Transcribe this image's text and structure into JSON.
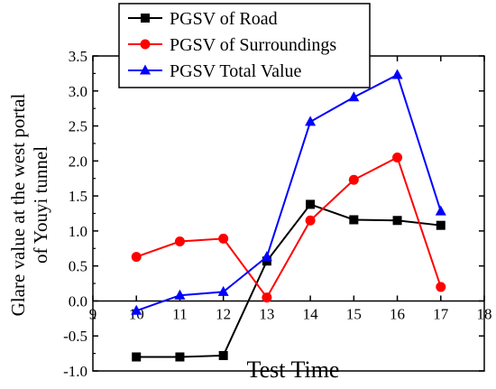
{
  "chart_data": {
    "type": "line",
    "x": [
      10,
      11,
      12,
      13,
      14,
      15,
      16,
      17
    ],
    "xlim": [
      9,
      18
    ],
    "ylim": [
      -1.0,
      3.5
    ],
    "xticks": [
      "9",
      "10",
      "11",
      "12",
      "13",
      "14",
      "15",
      "16",
      "17",
      "18"
    ],
    "yticks": [
      "-1.0",
      "-0.5",
      "0.0",
      "0.5",
      "1.0",
      "1.5",
      "2.0",
      "2.5",
      "3.0",
      "3.5"
    ],
    "xlabel": "Test Time",
    "ylabel_line1": "Glare value at the west portal",
    "ylabel_line2": "of Youyi tunnel",
    "legend_position": "top-left",
    "grid": false,
    "series": [
      {
        "name": "PGSV of Road",
        "color": "#000000",
        "marker": "square",
        "values": [
          -0.8,
          -0.8,
          -0.78,
          0.57,
          1.38,
          1.16,
          1.15,
          1.08
        ]
      },
      {
        "name": "PGSV of Surroundings",
        "color": "#ff0000",
        "marker": "circle",
        "values": [
          0.63,
          0.85,
          0.89,
          0.05,
          1.15,
          1.73,
          2.05,
          0.2
        ]
      },
      {
        "name": "PGSV Total Value",
        "color": "#0000ff",
        "marker": "triangle",
        "values": [
          -0.14,
          0.08,
          0.13,
          0.63,
          2.56,
          2.91,
          3.23,
          1.28
        ]
      }
    ]
  }
}
